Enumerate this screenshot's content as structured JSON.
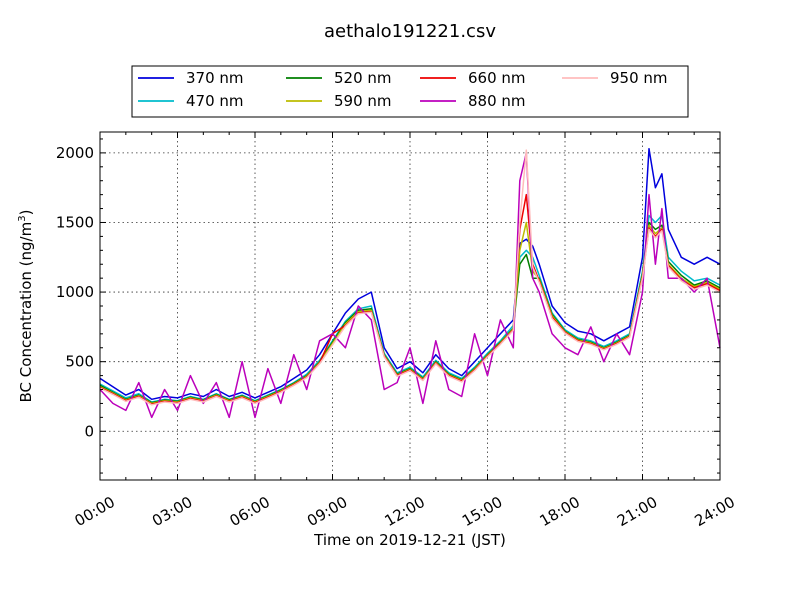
{
  "chart_data": {
    "type": "line",
    "title": "aethalo191221.csv",
    "xlabel": "Time on 2019-12-21 (JST)",
    "ylabel_main": "BC Concentration (ng/m",
    "ylabel_sup": "3",
    "ylabel_end": ")",
    "xlim": [
      0,
      24
    ],
    "ylim": [
      -350,
      2150
    ],
    "x_ticks": [
      0,
      3,
      6,
      9,
      12,
      15,
      18,
      21,
      24
    ],
    "x_tick_labels": [
      "00:00",
      "03:00",
      "06:00",
      "09:00",
      "12:00",
      "15:00",
      "18:00",
      "21:00",
      "24:00"
    ],
    "y_ticks": [
      0,
      500,
      1000,
      1500,
      2000
    ],
    "y_tick_labels": [
      "0",
      "500",
      "1000",
      "1500",
      "2000"
    ],
    "grid": true,
    "legend_position": "top",
    "x": [
      0,
      0.5,
      1,
      1.5,
      2,
      2.5,
      3,
      3.5,
      4,
      4.5,
      5,
      5.5,
      6,
      6.5,
      7,
      7.5,
      8,
      8.5,
      9,
      9.5,
      10,
      10.5,
      11,
      11.5,
      12,
      12.5,
      13,
      13.5,
      14,
      14.5,
      15,
      15.5,
      16,
      16.25,
      16.5,
      16.75,
      17,
      17.5,
      18,
      18.5,
      19,
      19.5,
      20,
      20.5,
      21,
      21.25,
      21.5,
      21.75,
      22,
      22.5,
      23,
      23.5,
      24
    ],
    "series": [
      {
        "name": "370 nm",
        "color": "#0000dd",
        "values": [
          380,
          320,
          260,
          300,
          230,
          250,
          240,
          270,
          250,
          300,
          250,
          280,
          240,
          280,
          320,
          380,
          440,
          550,
          700,
          850,
          950,
          1000,
          600,
          450,
          500,
          420,
          550,
          450,
          400,
          500,
          600,
          700,
          800,
          1350,
          1380,
          1330,
          1200,
          900,
          780,
          720,
          700,
          650,
          700,
          750,
          1250,
          2030,
          1750,
          1850,
          1450,
          1250,
          1200,
          1250,
          1200
        ]
      },
      {
        "name": "470 nm",
        "color": "#00bbcc",
        "values": [
          340,
          290,
          240,
          270,
          210,
          230,
          220,
          250,
          230,
          270,
          230,
          260,
          220,
          260,
          300,
          350,
          410,
          510,
          650,
          790,
          880,
          900,
          560,
          420,
          460,
          390,
          510,
          420,
          380,
          460,
          560,
          650,
          760,
          1250,
          1300,
          1250,
          1120,
          850,
          730,
          670,
          650,
          610,
          650,
          700,
          1150,
          1550,
          1500,
          1550,
          1250,
          1150,
          1080,
          1100,
          1050
        ]
      },
      {
        "name": "520 nm",
        "color": "#007f00",
        "values": [
          330,
          280,
          230,
          260,
          205,
          225,
          215,
          245,
          225,
          265,
          225,
          255,
          215,
          255,
          295,
          345,
          400,
          500,
          640,
          780,
          870,
          880,
          550,
          410,
          450,
          380,
          500,
          410,
          370,
          450,
          550,
          640,
          740,
          1200,
          1270,
          1100,
          1100,
          840,
          720,
          660,
          640,
          600,
          640,
          690,
          1130,
          1500,
          1450,
          1480,
          1220,
          1120,
          1050,
          1080,
          1030
        ]
      },
      {
        "name": "590 nm",
        "color": "#bbbb00",
        "values": [
          320,
          275,
          225,
          255,
          200,
          220,
          210,
          240,
          220,
          260,
          220,
          250,
          210,
          250,
          290,
          340,
          395,
          495,
          630,
          770,
          860,
          870,
          545,
          405,
          445,
          375,
          495,
          405,
          365,
          445,
          545,
          635,
          735,
          1300,
          1500,
          1150,
          1090,
          830,
          715,
          655,
          635,
          595,
          635,
          685,
          1120,
          1480,
          1420,
          1460,
          1200,
          1100,
          1040,
          1070,
          1020
        ]
      },
      {
        "name": "660 nm",
        "color": "#ee0000",
        "values": [
          315,
          270,
          220,
          250,
          195,
          215,
          205,
          235,
          215,
          255,
          215,
          245,
          205,
          245,
          285,
          335,
          390,
          490,
          700,
          760,
          850,
          860,
          540,
          400,
          440,
          370,
          490,
          400,
          360,
          440,
          540,
          630,
          730,
          1450,
          1700,
          1200,
          1080,
          820,
          710,
          650,
          630,
          590,
          630,
          680,
          1110,
          1460,
          1400,
          1450,
          1190,
          1090,
          1030,
          1060,
          1010
        ]
      },
      {
        "name": "880 nm",
        "color": "#bb00bb",
        "values": [
          300,
          200,
          150,
          350,
          100,
          300,
          150,
          400,
          200,
          350,
          100,
          500,
          100,
          450,
          200,
          550,
          300,
          650,
          700,
          600,
          900,
          800,
          300,
          350,
          600,
          200,
          650,
          300,
          250,
          700,
          400,
          800,
          600,
          1800,
          2000,
          1100,
          1000,
          700,
          600,
          550,
          750,
          500,
          700,
          550,
          1000,
          1700,
          1200,
          1600,
          1100,
          1100,
          1000,
          1100,
          600
        ]
      },
      {
        "name": "950 nm",
        "color": "#ffbbbb",
        "values": [
          310,
          265,
          215,
          245,
          190,
          210,
          200,
          230,
          210,
          250,
          210,
          240,
          200,
          240,
          280,
          330,
          385,
          485,
          620,
          755,
          845,
          855,
          535,
          395,
          435,
          365,
          485,
          395,
          355,
          435,
          535,
          625,
          725,
          1500,
          2020,
          1180,
          1070,
          810,
          705,
          645,
          625,
          585,
          625,
          675,
          1100,
          1450,
          1390,
          1440,
          1180,
          1080,
          1020,
          1050,
          1000
        ]
      }
    ]
  }
}
